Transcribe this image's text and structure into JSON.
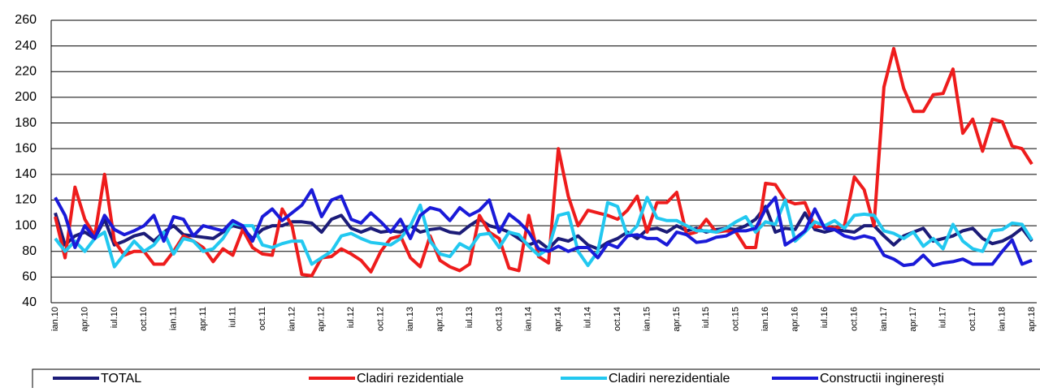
{
  "chart_data": {
    "type": "line",
    "categories": [
      "ian.10",
      null,
      null,
      "apr.10",
      null,
      null,
      "iul.10",
      null,
      null,
      "oct.10",
      null,
      null,
      "ian.11",
      null,
      null,
      "apr.11",
      null,
      null,
      "iul.11",
      null,
      null,
      "oct.11",
      null,
      null,
      "ian.12",
      null,
      null,
      "apr.12",
      null,
      null,
      "iul.12",
      null,
      null,
      "oct.12",
      null,
      null,
      "ian.13",
      null,
      null,
      "apr.13",
      null,
      null,
      "iul.13",
      null,
      null,
      "oct.13",
      null,
      null,
      "ian.14",
      null,
      null,
      "apr.14",
      null,
      null,
      "iul.14",
      null,
      null,
      "oct.14",
      null,
      null,
      "ian.15",
      null,
      null,
      "apr.15",
      null,
      null,
      "iul.15",
      null,
      null,
      "oct.15",
      null,
      null,
      "ian.16",
      null,
      null,
      "apr.16",
      null,
      null,
      "iul.16",
      null,
      null,
      "oct.16",
      null,
      null,
      "ian.17",
      null,
      null,
      "apr.17",
      null,
      null,
      "iul.17",
      null,
      null,
      "oct.17",
      null,
      null,
      "ian.18",
      null,
      null,
      "apr.18"
    ],
    "series": [
      {
        "name": "TOTAL",
        "color": "#1c1c78",
        "values": [
          110,
          85,
          92,
          95,
          90,
          105,
          85,
          88,
          92,
          94,
          88,
          95,
          100,
          93,
          92,
          91,
          90,
          95,
          100,
          98,
          90,
          97,
          100,
          100,
          103,
          103,
          102,
          95,
          105,
          108,
          98,
          95,
          98,
          95,
          96,
          95,
          100,
          95,
          97,
          98,
          95,
          94,
          100,
          105,
          100,
          98,
          95,
          90,
          85,
          88,
          82,
          90,
          88,
          92,
          85,
          82,
          87,
          90,
          95,
          90,
          97,
          98,
          95,
          100,
          96,
          98,
          95,
          97,
          98,
          97,
          100,
          105,
          115,
          95,
          98,
          97,
          110,
          97,
          95,
          97,
          96,
          95,
          100,
          100,
          92,
          85,
          92,
          95,
          98,
          88,
          90,
          92,
          96,
          98,
          90,
          86,
          88,
          92,
          98,
          88
        ]
      },
      {
        "name": "Cladiri rezidentiale",
        "color": "#ee1c1c",
        "values": [
          107,
          75,
          130,
          105,
          92,
          140,
          88,
          77,
          80,
          80,
          70,
          70,
          80,
          92,
          88,
          83,
          72,
          82,
          77,
          97,
          83,
          78,
          77,
          113,
          100,
          62,
          61,
          75,
          76,
          82,
          78,
          73,
          64,
          80,
          90,
          92,
          75,
          68,
          92,
          73,
          68,
          65,
          70,
          108,
          95,
          90,
          67,
          65,
          108,
          76,
          71,
          160,
          123,
          100,
          112,
          110,
          108,
          105,
          112,
          123,
          95,
          118,
          118,
          126,
          93,
          95,
          105,
          95,
          96,
          95,
          83,
          83,
          133,
          132,
          120,
          117,
          118,
          99,
          100,
          98,
          100,
          138,
          128,
          100,
          208,
          238,
          207,
          189,
          189,
          202,
          203,
          222,
          172,
          183,
          158,
          183,
          181,
          162,
          160,
          148
        ]
      },
      {
        "name": "Cladiri nerezidentiale",
        "color": "#22c8f0",
        "values": [
          90,
          80,
          88,
          80,
          90,
          95,
          68,
          78,
          88,
          80,
          85,
          95,
          78,
          90,
          88,
          80,
          82,
          90,
          102,
          100,
          100,
          85,
          83,
          86,
          88,
          88,
          70,
          75,
          80,
          92,
          94,
          90,
          87,
          86,
          85,
          90,
          100,
          116,
          88,
          78,
          76,
          86,
          82,
          93,
          94,
          83,
          95,
          93,
          84,
          77,
          82,
          108,
          110,
          80,
          69,
          80,
          118,
          115,
          92,
          100,
          122,
          106,
          104,
          104,
          100,
          96,
          96,
          95,
          98,
          103,
          107,
          95,
          103,
          101,
          120,
          88,
          95,
          103,
          100,
          104,
          98,
          108,
          109,
          108,
          96,
          94,
          90,
          95,
          84,
          90,
          82,
          101,
          88,
          82,
          80,
          96,
          97,
          102,
          101,
          89
        ]
      },
      {
        "name": "Constructii inginerești",
        "color": "#1a1ad8",
        "values": [
          122,
          108,
          83,
          100,
          90,
          108,
          97,
          93,
          96,
          100,
          108,
          88,
          107,
          105,
          92,
          100,
          98,
          96,
          104,
          100,
          88,
          107,
          113,
          104,
          110,
          116,
          128,
          107,
          120,
          123,
          105,
          102,
          110,
          103,
          95,
          105,
          90,
          108,
          114,
          112,
          104,
          114,
          108,
          112,
          120,
          95,
          109,
          103,
          95,
          82,
          80,
          84,
          80,
          83,
          83,
          75,
          86,
          83,
          92,
          93,
          90,
          90,
          85,
          95,
          93,
          87,
          88,
          91,
          92,
          96,
          96,
          98,
          113,
          122,
          85,
          90,
          96,
          113,
          98,
          97,
          92,
          90,
          92,
          90,
          77,
          74,
          69,
          70,
          77,
          69,
          71,
          72,
          74,
          70,
          70,
          70,
          80,
          89,
          70,
          73
        ]
      }
    ],
    "ylim": [
      40,
      260
    ],
    "yticks": [
      40,
      60,
      80,
      100,
      120,
      140,
      160,
      180,
      200,
      220,
      240,
      260
    ],
    "grid": true,
    "legend": "bottom"
  }
}
